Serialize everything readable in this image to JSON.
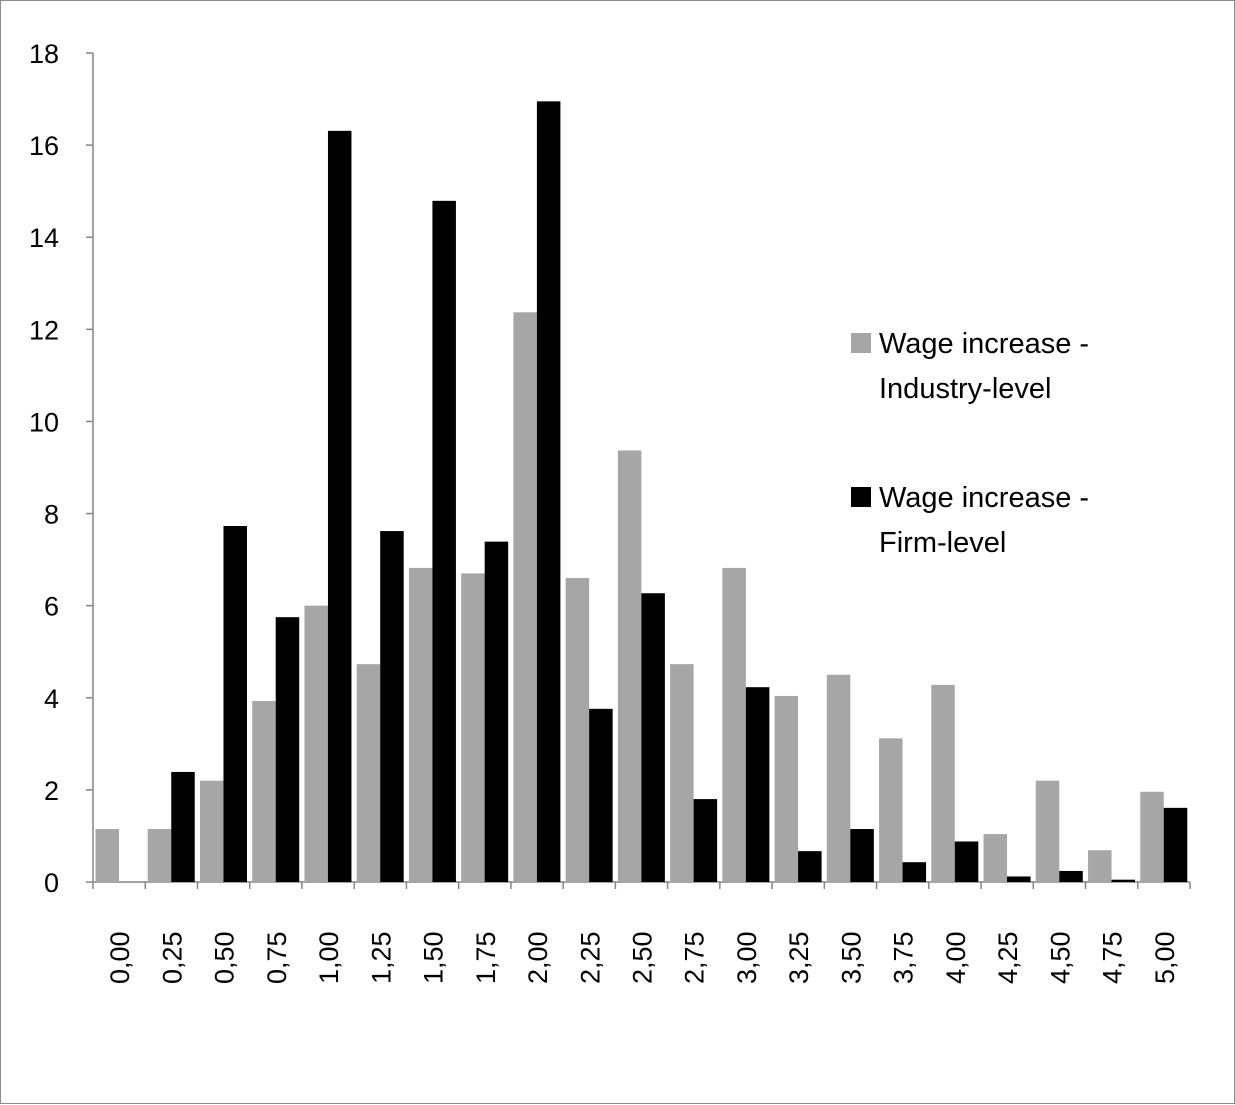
{
  "chart_data": {
    "type": "bar",
    "categories": [
      "0,00",
      "0,25",
      "0,50",
      "0,75",
      "1,00",
      "1,25",
      "1,50",
      "1,75",
      "2,00",
      "2,25",
      "2,50",
      "2,75",
      "3,00",
      "3,25",
      "3,50",
      "3,75",
      "4,00",
      "4,25",
      "4,50",
      "4,75",
      "5,00"
    ],
    "series": [
      {
        "name_lines": [
          "Wage increase -",
          "Industry-level"
        ],
        "color": "#a6a6a6",
        "values": [
          1.15,
          1.15,
          2.2,
          3.93,
          6.0,
          4.73,
          6.82,
          6.7,
          12.37,
          6.6,
          9.37,
          4.73,
          6.82,
          4.04,
          4.5,
          3.12,
          4.28,
          1.04,
          2.2,
          0.69,
          1.96
        ]
      },
      {
        "name_lines": [
          "Wage increase -",
          "Firm-level"
        ],
        "color": "#000000",
        "values": [
          0.0,
          2.39,
          7.73,
          5.75,
          16.31,
          7.62,
          14.79,
          7.39,
          16.95,
          3.76,
          6.27,
          1.8,
          4.23,
          0.67,
          1.15,
          0.43,
          0.88,
          0.12,
          0.24,
          0.05,
          1.61
        ]
      }
    ],
    "yticks": [
      "0",
      "2",
      "4",
      "6",
      "8",
      "10",
      "12",
      "14",
      "16",
      "18"
    ],
    "ylim": [
      0,
      18
    ],
    "legend_position": "right"
  }
}
